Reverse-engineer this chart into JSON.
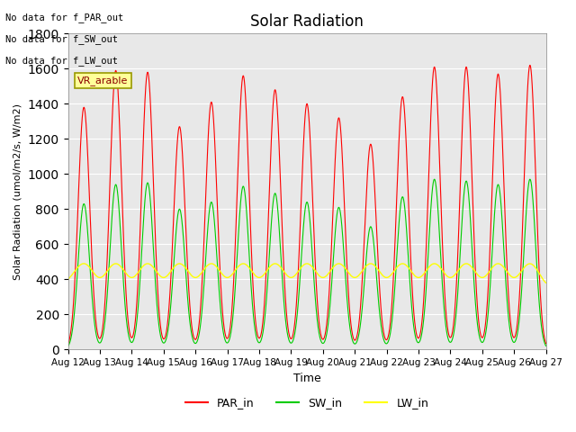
{
  "title": "Solar Radiation",
  "xlabel": "Time",
  "ylabel": "Solar Radiation (umol/m2/s, W/m2)",
  "ylim": [
    0,
    1800
  ],
  "start_day": 12,
  "num_days": 15,
  "background_color": "#e8e8e8",
  "annotations": [
    "No data for f_PAR_out",
    "No data for f_SW_out",
    "No data for f_LW_out"
  ],
  "legend_label": "VR_arable",
  "par_peaks": [
    1380,
    1590,
    1580,
    1270,
    1410,
    1560,
    1480,
    1400,
    1320,
    1170,
    1440,
    1610,
    1610,
    1570,
    1620
  ],
  "sw_peaks": [
    830,
    940,
    950,
    800,
    840,
    930,
    890,
    840,
    810,
    700,
    870,
    970,
    960,
    940,
    970
  ],
  "lw_base": 370,
  "lw_peak": 490,
  "lw_trough": 350,
  "line_colors": {
    "PAR_in": "#ff0000",
    "SW_in": "#00cc00",
    "LW_in": "#ffff00"
  },
  "legend_bg": "#ffff99",
  "legend_border": "#999900",
  "sigma_par": 0.18,
  "sigma_sw": 0.18,
  "sigma_lw": 0.3
}
